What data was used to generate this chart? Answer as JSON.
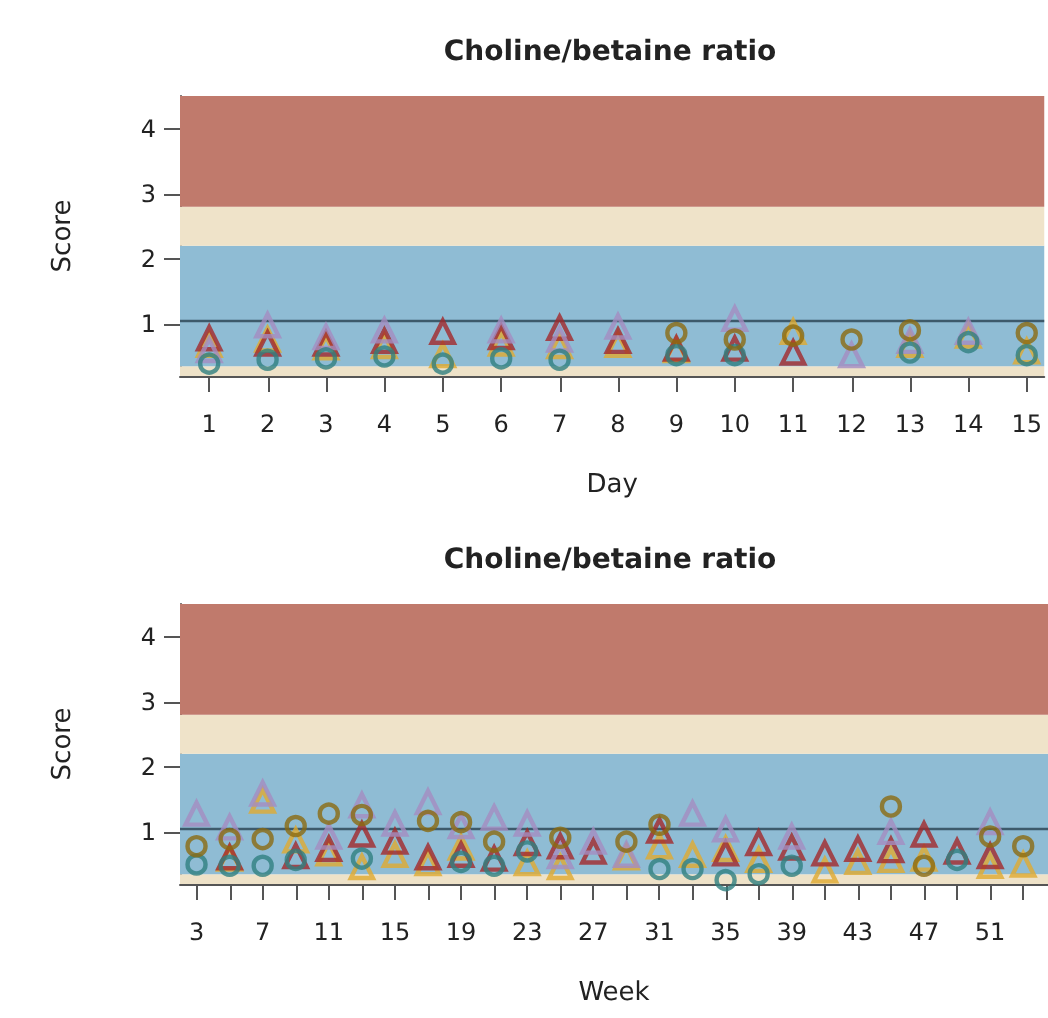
{
  "chart_data": [
    {
      "type": "scatter",
      "title": "Choline/betaine ratio",
      "xlabel": "Day",
      "ylabel": "Score",
      "x": [
        1,
        2,
        3,
        4,
        5,
        6,
        7,
        8,
        9,
        10,
        11,
        12,
        13,
        14,
        15
      ],
      "series": [
        {
          "color": "#2f7f7f",
          "marker": "circle",
          "values": [
            0.39,
            0.45,
            0.47,
            0.5,
            0.39,
            0.47,
            0.45,
            null,
            0.52,
            0.52,
            null,
            null,
            0.56,
            0.72,
            0.52
          ]
        },
        {
          "color": "#8b6a10",
          "marker": "circle",
          "values": [
            null,
            null,
            null,
            null,
            null,
            null,
            null,
            null,
            0.86,
            0.76,
            0.82,
            0.76,
            0.9,
            null,
            0.86
          ]
        },
        {
          "color": "#e0aa30",
          "marker": "triangle",
          "values": [
            0.68,
            0.76,
            0.64,
            0.66,
            0.52,
            0.7,
            0.66,
            0.68,
            0.6,
            null,
            0.88,
            null,
            0.68,
            0.82,
            0.58
          ]
        },
        {
          "color": "#a3282a",
          "marker": "triangle",
          "values": [
            0.78,
            0.7,
            0.7,
            0.74,
            0.88,
            0.8,
            0.94,
            0.74,
            0.62,
            0.62,
            0.56,
            null,
            null,
            null,
            null
          ]
        },
        {
          "color": "#a48cc0",
          "marker": "triangle",
          "values": [
            0.6,
            0.98,
            0.8,
            0.9,
            null,
            0.9,
            0.76,
            0.96,
            null,
            1.08,
            null,
            0.52,
            0.74,
            0.88,
            null
          ]
        }
      ],
      "xlim": [
        0.5,
        15.3
      ],
      "xticks": [
        1,
        2,
        3,
        4,
        5,
        6,
        7,
        8,
        9,
        10,
        11,
        12,
        13,
        14,
        15
      ],
      "ylim": [
        0.2,
        4.5
      ],
      "yticks": [
        1,
        2,
        3,
        4
      ],
      "grid": false,
      "ref_lines": [
        {
          "axis": "y",
          "value": 1.05,
          "color": "#3d5a6b"
        }
      ],
      "bands": [
        {
          "axis": "y",
          "from": 0.2,
          "to": 0.35,
          "color": "#eee2c8"
        },
        {
          "axis": "y",
          "from": 0.35,
          "to": 2.2,
          "color": "#8fbcd4"
        },
        {
          "axis": "y",
          "from": 2.2,
          "to": 2.8,
          "color": "#efe3c9"
        },
        {
          "axis": "y",
          "from": 2.8,
          "to": 4.5,
          "color": "#c07a6c"
        }
      ]
    },
    {
      "type": "scatter",
      "title": "Choline/betaine ratio",
      "xlabel": "Week",
      "ylabel": "Score",
      "x": [
        3,
        5,
        7,
        9,
        11,
        13,
        15,
        17,
        19,
        21,
        23,
        25,
        27,
        29,
        31,
        33,
        35,
        37,
        39,
        41,
        43,
        45,
        47,
        49,
        51,
        53
      ],
      "series": [
        {
          "color": "#2f7f7f",
          "marker": "circle",
          "values": [
            0.5,
            0.48,
            0.48,
            0.57,
            null,
            0.59,
            null,
            null,
            0.54,
            0.48,
            0.7,
            null,
            null,
            null,
            0.43,
            0.43,
            0.26,
            0.35,
            0.48,
            null,
            null,
            null,
            null,
            0.57,
            null,
            null
          ]
        },
        {
          "color": "#8b6a10",
          "marker": "circle",
          "values": [
            0.78,
            0.89,
            0.89,
            1.09,
            1.28,
            1.26,
            null,
            1.17,
            1.15,
            0.85,
            null,
            0.91,
            null,
            0.85,
            1.11,
            null,
            null,
            null,
            null,
            null,
            null,
            1.39,
            0.48,
            null,
            0.93,
            0.78
          ]
        },
        {
          "color": "#e0aa30",
          "marker": "triangle",
          "values": [
            null,
            0.59,
            1.48,
            0.87,
            0.67,
            0.46,
            0.65,
            0.52,
            0.76,
            null,
            0.52,
            0.46,
            null,
            0.61,
            0.78,
            0.65,
            0.74,
            0.57,
            null,
            0.41,
            0.54,
            0.57,
            0.59,
            null,
            0.48,
            0.5
          ]
        },
        {
          "color": "#a3282a",
          "marker": "triangle",
          "values": [
            null,
            0.61,
            null,
            0.63,
            0.74,
            0.96,
            0.85,
            0.61,
            0.65,
            0.59,
            0.83,
            0.78,
            0.7,
            null,
            1.02,
            null,
            0.67,
            0.83,
            0.76,
            0.67,
            0.74,
            0.72,
            0.96,
            0.7,
            0.63,
            null
          ]
        },
        {
          "color": "#a48cc0",
          "marker": "triangle",
          "values": [
            1.28,
            1.07,
            1.59,
            null,
            0.93,
            1.41,
            1.13,
            1.46,
            1.09,
            1.22,
            1.13,
            0.63,
            0.85,
            0.65,
            null,
            1.28,
            1.04,
            null,
            0.93,
            null,
            null,
            1.0,
            null,
            null,
            1.15,
            null
          ]
        }
      ],
      "xlim": [
        2,
        54.5
      ],
      "xticks": [
        3,
        {
          "value": 5,
          "label": null
        },
        7,
        {
          "value": 9,
          "label": null
        },
        11,
        {
          "value": 13,
          "label": null
        },
        15,
        {
          "value": 17,
          "label": null
        },
        19,
        {
          "value": 21,
          "label": null
        },
        23,
        {
          "value": 25,
          "label": null
        },
        27,
        {
          "value": 29,
          "label": null
        },
        31,
        {
          "value": 33,
          "label": null
        },
        35,
        {
          "value": 37,
          "label": null
        },
        39,
        {
          "value": 41,
          "label": null
        },
        43,
        {
          "value": 45,
          "label": null
        },
        47,
        {
          "value": 49,
          "label": null
        },
        51,
        {
          "value": 53,
          "label": null
        }
      ],
      "ylim": [
        0.2,
        4.5
      ],
      "yticks": [
        1,
        2,
        3,
        4
      ],
      "grid": false,
      "ref_lines": [
        {
          "axis": "y",
          "value": 1.05,
          "color": "#3d5a6b"
        }
      ],
      "bands": [
        {
          "axis": "y",
          "from": 0.2,
          "to": 0.35,
          "color": "#eee2c8"
        },
        {
          "axis": "y",
          "from": 0.35,
          "to": 2.2,
          "color": "#8fbcd4"
        },
        {
          "axis": "y",
          "from": 2.2,
          "to": 2.8,
          "color": "#efe3c9"
        },
        {
          "axis": "y",
          "from": 2.8,
          "to": 4.5,
          "color": "#c07a6c"
        }
      ]
    }
  ]
}
